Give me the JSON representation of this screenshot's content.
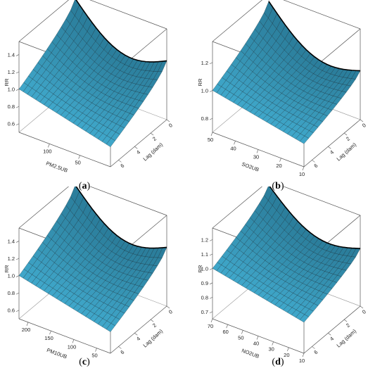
{
  "chart_data": [
    {
      "panel": "a",
      "type": "surface",
      "zlabel": "RR",
      "xlabel": "PM2.5UB",
      "ylabel": "Lag (dam)",
      "x_ticks": [
        "100",
        "50"
      ],
      "x_range": [
        0,
        150
      ],
      "y_ticks": [
        "0",
        "2",
        "4",
        "6"
      ],
      "y_range": [
        0,
        7
      ],
      "z_ticks": [
        "0.6",
        "0.8",
        "1.0",
        "1.2",
        "1.4"
      ],
      "z_range": [
        0.5,
        1.55
      ],
      "surface": {
        "rr_at_high_x_lag0": 1.5,
        "rr_at_low_x_lag0": 1.18,
        "rr_min": 0.7
      }
    },
    {
      "panel": "b",
      "type": "surface",
      "zlabel": "RR",
      "xlabel": "SO2UB",
      "ylabel": "Lag (dam)",
      "x_ticks": [
        "50",
        "40",
        "30",
        "20",
        "10"
      ],
      "x_range": [
        10,
        50
      ],
      "y_ticks": [
        "0",
        "2",
        "4",
        "6"
      ],
      "y_range": [
        0,
        7
      ],
      "z_ticks": [
        "0.8",
        "1.0",
        "1.2"
      ],
      "z_range": [
        0.7,
        1.35
      ],
      "surface": {
        "rr_at_high_x_lag0": 1.3,
        "rr_at_low_x_lag0": 1.05,
        "rr_min": 0.85
      }
    },
    {
      "panel": "c",
      "type": "surface",
      "zlabel": "RR",
      "xlabel": "PM10UB",
      "ylabel": "Lag (dam)",
      "x_ticks": [
        "200",
        "150",
        "100",
        "50"
      ],
      "x_range": [
        20,
        220
      ],
      "y_ticks": [
        "0",
        "2",
        "4",
        "6"
      ],
      "y_range": [
        0,
        7
      ],
      "z_ticks": [
        "0.6",
        "0.8",
        "1.0",
        "1.2",
        "1.4"
      ],
      "z_range": [
        0.5,
        1.55
      ],
      "surface": {
        "rr_at_high_x_lag0": 1.5,
        "rr_at_low_x_lag0": 1.18,
        "rr_min": 0.72
      }
    },
    {
      "panel": "d",
      "type": "surface",
      "zlabel": "RR",
      "xlabel": "NO2UB",
      "ylabel": "Lag (dam)",
      "x_ticks": [
        "70",
        "60",
        "50",
        "40",
        "30",
        "20",
        "10"
      ],
      "x_range": [
        10,
        70
      ],
      "y_ticks": [
        "0",
        "2",
        "4",
        "6"
      ],
      "y_range": [
        0,
        7
      ],
      "z_ticks": [
        "0.7",
        "0.8",
        "0.9",
        "1.0",
        "1.1",
        "1.2"
      ],
      "z_range": [
        0.65,
        1.28
      ],
      "surface": {
        "rr_at_high_x_lag0": 1.25,
        "rr_at_low_x_lag0": 1.05,
        "rr_min": 0.85
      }
    }
  ],
  "captions": [
    "(a)",
    "(b)",
    "(c)",
    "(d)"
  ],
  "colors": {
    "surface_top": "#3b9fbf",
    "surface_under": "#0f2f3d",
    "mesh": "#0a1a22",
    "box": "#555555"
  }
}
